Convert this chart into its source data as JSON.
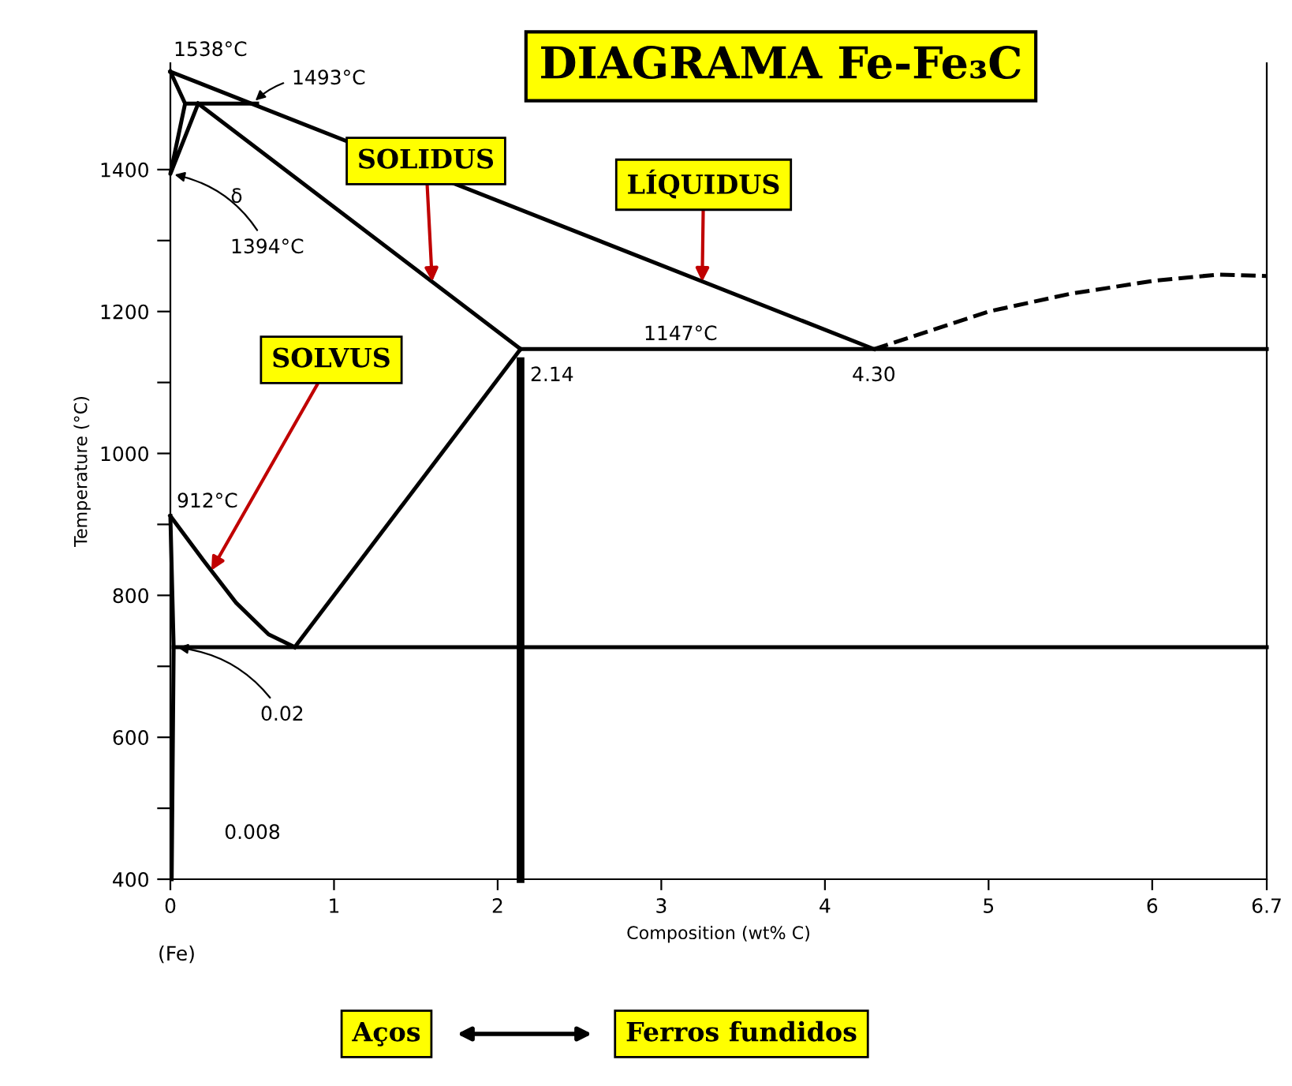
{
  "chart_data": {
    "type": "line",
    "title": "DIAGRAMA Fe-Fe₃C",
    "xlabel": "Composition (wt% C)",
    "ylabel": "Temperature (°C)",
    "xlim": [
      0,
      6.7
    ],
    "ylim": [
      400,
      1550
    ],
    "xticks": [
      0,
      1,
      2,
      3,
      4,
      5,
      6,
      6.7
    ],
    "yticks": [
      400,
      {
        "value": 500,
        "label": null
      },
      600,
      {
        "value": 700,
        "label": null
      },
      800,
      {
        "value": 900,
        "label": null
      },
      1000,
      {
        "value": 1100,
        "label": null
      },
      1200,
      {
        "value": 1300,
        "label": null
      },
      1400
    ],
    "grid": false,
    "line_style": "solid",
    "marker": "none",
    "series": [
      {
        "color": "#000000",
        "x": [
          0,
          4.3
        ],
        "values": [
          1538,
          1147
        ]
      },
      {
        "color": "#000000",
        "x": [
          4.3,
          5.0,
          5.5,
          6.0,
          6.4,
          6.7
        ],
        "values": [
          1147,
          1200,
          1225,
          1243,
          1252,
          1250
        ],
        "line_style": "dashed"
      },
      {
        "color": "#000000",
        "x": [
          0.17,
          2.14
        ],
        "values": [
          1493,
          1147
        ]
      },
      {
        "color": "#000000",
        "x": [
          0,
          0.09
        ],
        "values": [
          1538,
          1493
        ]
      },
      {
        "color": "#000000",
        "x": [
          0.09,
          0.53
        ],
        "values": [
          1493,
          1493
        ]
      },
      {
        "color": "#000000",
        "x": [
          0.09,
          0,
          0.17
        ],
        "values": [
          1493,
          1394,
          1493
        ]
      },
      {
        "color": "#000000",
        "x": [
          2.14,
          6.7
        ],
        "values": [
          1147,
          1147
        ]
      },
      {
        "color": "#000000",
        "x": [
          0.76,
          2.14
        ],
        "values": [
          727,
          1147
        ]
      },
      {
        "color": "#000000",
        "x": [
          0,
          0.2,
          0.4,
          0.6,
          0.76
        ],
        "values": [
          912,
          850,
          790,
          745,
          727
        ]
      },
      {
        "color": "#000000",
        "x": [
          0.02,
          6.7
        ],
        "values": [
          727,
          727
        ]
      },
      {
        "color": "#000000",
        "x": [
          0,
          0.02,
          0.008
        ],
        "values": [
          912,
          727,
          400
        ]
      },
      {
        "color": "#000000",
        "x": [
          2.14,
          2.14
        ],
        "values": [
          1130,
          400
        ]
      }
    ],
    "annotations": [
      {
        "text": "1538°C",
        "x": 0,
        "y": 1538
      },
      {
        "text": "1493°C",
        "x": 0.5,
        "y": 1493
      },
      {
        "text": "1394°C",
        "x": 0,
        "y": 1394
      },
      {
        "text": "912°C",
        "x": 0,
        "y": 912
      },
      {
        "text": "1147°C",
        "x": 3.1,
        "y": 1147
      },
      {
        "text": "2.14",
        "x": 2.14,
        "y": 1147
      },
      {
        "text": "4.30",
        "x": 4.3,
        "y": 1147
      },
      {
        "text": "0.02",
        "x": 0.02,
        "y": 727
      },
      {
        "text": "SOLIDUS",
        "x": 1.6,
        "y": 1242
      },
      {
        "text": "LÍQUIDUS",
        "x": 3.25,
        "y": 1242
      },
      {
        "text": "SOLVUS",
        "x": 0.25,
        "y": 835
      },
      "δ",
      "0.008",
      "(Fe)",
      "Aços",
      "Ferros fundidos"
    ]
  }
}
